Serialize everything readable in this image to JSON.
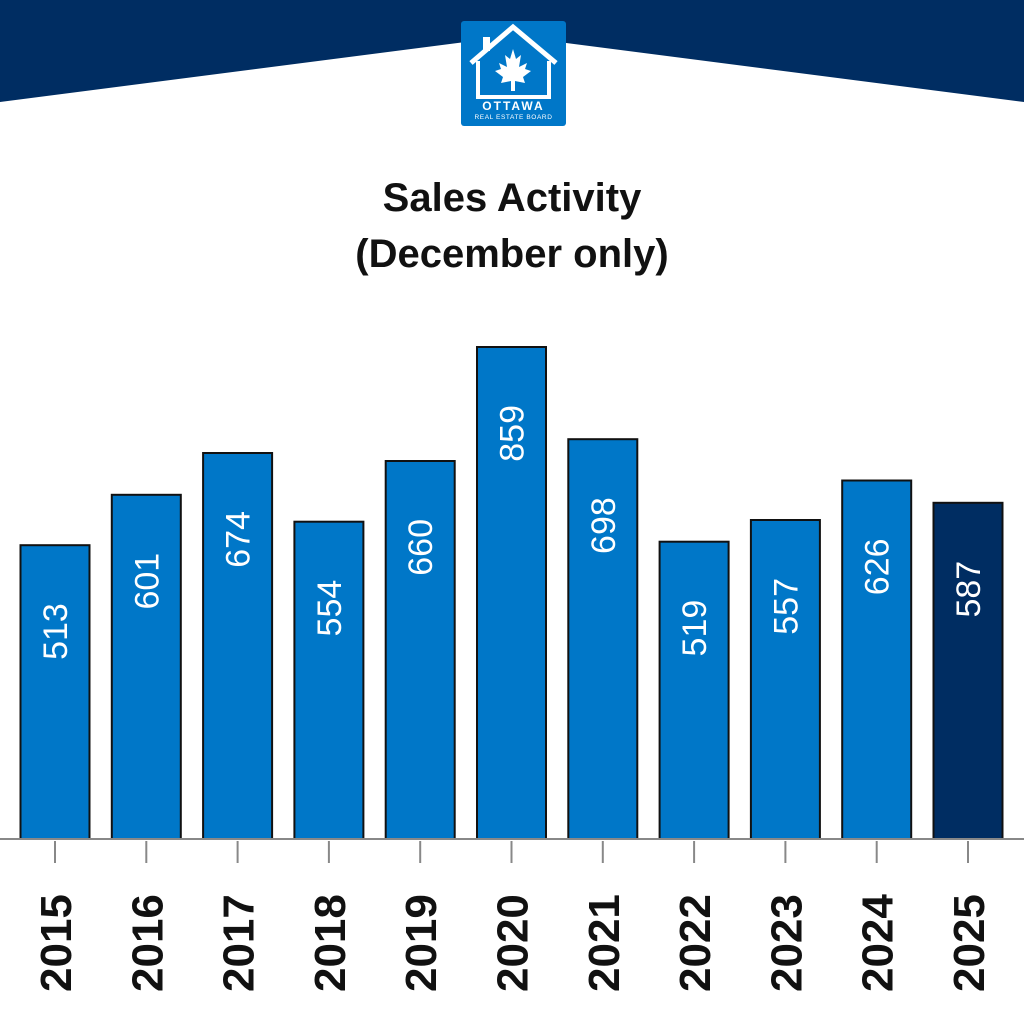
{
  "logo": {
    "name": "OTTAWA",
    "subtitle": "REAL ESTATE BOARD"
  },
  "colors": {
    "banner": "#002d62",
    "bar": "#0077c8",
    "bar_highlight": "#002d62",
    "axis": "#888888"
  },
  "chart_data": {
    "type": "bar",
    "title": "Sales Activity",
    "subtitle": "(December only)",
    "categories": [
      "2015",
      "2016",
      "2017",
      "2018",
      "2019",
      "2020",
      "2021",
      "2022",
      "2023",
      "2024",
      "2025"
    ],
    "values": [
      513,
      601,
      674,
      554,
      660,
      859,
      698,
      519,
      557,
      626,
      587
    ],
    "highlight": "2025",
    "ylim": [
      0,
      859
    ],
    "xlabel": "",
    "ylabel": "",
    "grid": false
  }
}
